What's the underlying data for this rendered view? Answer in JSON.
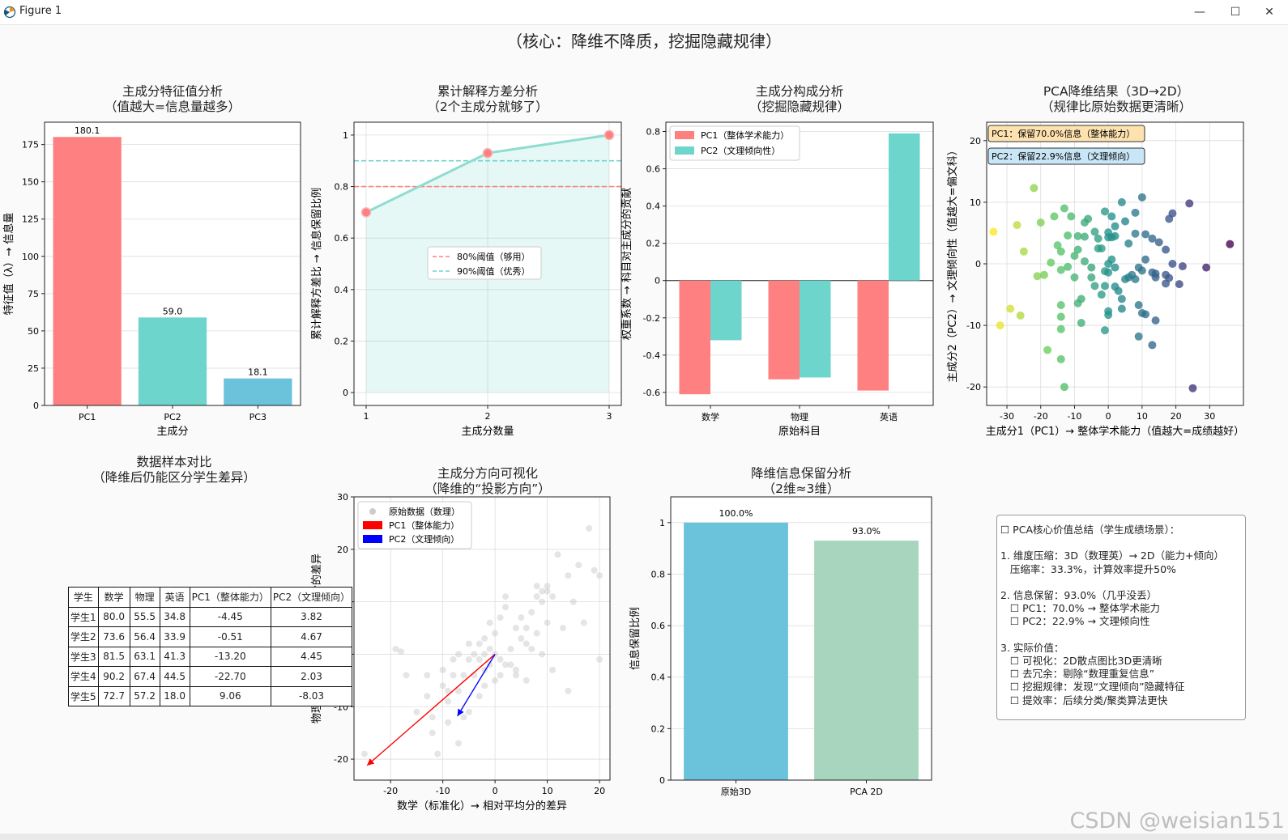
{
  "window": {
    "title": "Figure 1",
    "minimize": "—",
    "maximize": "☐",
    "close": "✕"
  },
  "figure": {
    "suptitle": "（核心：降维不降质，挖掘隐藏规律）"
  },
  "watermark": "CSDN @weisian151",
  "colors": {
    "pc1": "#ff8080",
    "pc2": "#6dd5cc",
    "pc3": "#6ac3da",
    "pca2d": "#a7d5bd",
    "orig3d": "#6ac3da",
    "grid": "#dddddd"
  },
  "chart_data": [
    {
      "id": "eigen",
      "type": "bar",
      "title": "主成分特征值分析",
      "subtitle": "（值越大=信息量越多）",
      "xlabel": "主成分",
      "ylabel": "特征值（λ）→ 信息量",
      "categories": [
        "PC1",
        "PC2",
        "PC3"
      ],
      "values": [
        180.1,
        59.0,
        18.1
      ],
      "value_labels": [
        "180.1",
        "59.0",
        "18.1"
      ],
      "ylim": [
        0,
        190
      ],
      "yticks": [
        0,
        25,
        50,
        75,
        100,
        125,
        150,
        175
      ],
      "grid": true
    },
    {
      "id": "cumvar",
      "type": "line",
      "title": "累计解释方差分析",
      "subtitle": "（2个主成分就够了）",
      "xlabel": "主成分数量",
      "ylabel": "累计解释方差比 → 信息保留比例",
      "x": [
        1,
        2,
        3
      ],
      "y": [
        0.7,
        0.93,
        1.0
      ],
      "xlim": [
        0.9,
        3.1
      ],
      "ylim": [
        -0.05,
        1.05
      ],
      "xticks": [
        1,
        2,
        3
      ],
      "yticks": [
        0.0,
        0.2,
        0.4,
        0.6,
        0.8,
        1.0
      ],
      "thresholds": [
        {
          "value": 0.8,
          "label": "80%阈值（够用）",
          "color": "#ff8080"
        },
        {
          "value": 0.9,
          "label": "90%阈值（优秀）",
          "color": "#6dd5cc"
        }
      ],
      "legend": "center-right",
      "grid": true
    },
    {
      "id": "loadings",
      "type": "bar",
      "title": "主成分构成分析",
      "subtitle": "（挖掘隐藏规律）",
      "xlabel": "原始科目",
      "ylabel": "权重系数 → 科目对主成分的贡献",
      "categories": [
        "数学",
        "物理",
        "英语"
      ],
      "series": [
        {
          "name": "PC1（整体学术能力）",
          "values": [
            -0.61,
            -0.53,
            -0.59
          ]
        },
        {
          "name": "PC2（文理倾向性）",
          "values": [
            -0.32,
            -0.52,
            0.79
          ]
        }
      ],
      "ylim": [
        -0.67,
        0.85
      ],
      "yticks": [
        -0.6,
        -0.4,
        -0.2,
        0.0,
        0.2,
        0.4,
        0.6,
        0.8
      ],
      "legend": "top-left",
      "grid": true
    },
    {
      "id": "scatter2d",
      "type": "scatter",
      "title": "PCA降维结果（3D→2D）",
      "subtitle": "（规律比原始数据更清晰）",
      "xlabel": "主成分1（PC1）→ 整体学术能力（值越大=成绩越好）",
      "ylabel": "主成分2（PC2）→ 文理倾向性（值越大=偏文科）",
      "xlim": [
        -36,
        40
      ],
      "ylim": [
        -23,
        23
      ],
      "xticks": [
        -30,
        -20,
        -10,
        0,
        10,
        20,
        30
      ],
      "yticks": [
        -20,
        -10,
        0,
        10,
        20
      ],
      "annotations": [
        "PC1：保留70.0%信息（整体能力）",
        "PC2：保留22.9%信息（文理倾向）"
      ],
      "colormap": "viridis (reversed by PC1)",
      "points": [
        [
          -34,
          5.2
        ],
        [
          -32,
          -10
        ],
        [
          -29,
          -7.3
        ],
        [
          -27,
          6.3
        ],
        [
          -26,
          -8.4
        ],
        [
          -25,
          2
        ],
        [
          -22,
          12.3
        ],
        [
          -21,
          -2
        ],
        [
          -20,
          6.7
        ],
        [
          -19,
          -1.8
        ],
        [
          -18,
          -14
        ],
        [
          -17,
          0.2
        ],
        [
          -16,
          7.7
        ],
        [
          -15,
          3
        ],
        [
          -14,
          2
        ],
        [
          -14,
          -1
        ],
        [
          -14,
          -6.7
        ],
        [
          -14,
          -8.6
        ],
        [
          -14,
          -10.6
        ],
        [
          -14,
          -15.5
        ],
        [
          -13,
          -20
        ],
        [
          -13,
          9
        ],
        [
          -12,
          4.6
        ],
        [
          -12,
          -0.5
        ],
        [
          -11,
          7.7
        ],
        [
          -10,
          -2.2
        ],
        [
          -10,
          1.3
        ],
        [
          -9,
          4.5
        ],
        [
          -9,
          2.3
        ],
        [
          -9,
          -6.4
        ],
        [
          -8,
          -9.6
        ],
        [
          -8,
          -5.7
        ],
        [
          -7,
          6.7
        ],
        [
          -7,
          4.4
        ],
        [
          -7,
          0.4
        ],
        [
          -6,
          7.3
        ],
        [
          -5,
          -0.6
        ],
        [
          -5,
          -2.2
        ],
        [
          -4,
          -3.6
        ],
        [
          -4,
          5.2
        ],
        [
          -3,
          4.1
        ],
        [
          -3,
          2.5
        ],
        [
          -2,
          2.5
        ],
        [
          -2,
          -5
        ],
        [
          -1,
          8.5
        ],
        [
          -1,
          -1.2
        ],
        [
          -1,
          -3.6
        ],
        [
          -1,
          -10.8
        ],
        [
          -1,
          17
        ],
        [
          0,
          0
        ],
        [
          0,
          5.1
        ],
        [
          0,
          4.3
        ],
        [
          0,
          -1.4
        ],
        [
          0,
          -7.7
        ],
        [
          0,
          -8.3
        ],
        [
          1,
          7.7
        ],
        [
          1,
          4.3
        ],
        [
          1,
          0.7
        ],
        [
          2,
          6.1
        ],
        [
          2,
          4.5
        ],
        [
          2,
          -0.6
        ],
        [
          2,
          -3.7
        ],
        [
          3,
          -4.4
        ],
        [
          4,
          -5.7
        ],
        [
          4,
          -7.3
        ],
        [
          4,
          10
        ],
        [
          5,
          -2.5
        ],
        [
          5,
          6.9
        ],
        [
          6,
          3.3
        ],
        [
          6,
          -2.2
        ],
        [
          7,
          -1.8
        ],
        [
          8,
          8.3
        ],
        [
          8,
          4.9
        ],
        [
          8,
          -2.5
        ],
        [
          9,
          -0.6
        ],
        [
          9,
          -6.7
        ],
        [
          9,
          -11.8
        ],
        [
          10,
          10.8
        ],
        [
          10,
          -1.1
        ],
        [
          10,
          -8
        ],
        [
          11,
          0.7
        ],
        [
          11,
          4.8
        ],
        [
          11,
          -8.2
        ],
        [
          13,
          -13.2
        ],
        [
          13,
          -1.4
        ],
        [
          13,
          4.1
        ],
        [
          14,
          -9.2
        ],
        [
          14,
          -1.6
        ],
        [
          14,
          -2.2
        ],
        [
          15,
          3.5
        ],
        [
          17,
          -1.8
        ],
        [
          17,
          2.3
        ],
        [
          17,
          -3.2
        ],
        [
          18,
          7.3
        ],
        [
          18,
          -2.3
        ],
        [
          19,
          0
        ],
        [
          19,
          8.2
        ],
        [
          21,
          -3.3
        ],
        [
          22,
          -0.4
        ],
        [
          24,
          9.8
        ],
        [
          25,
          -20.2
        ],
        [
          29,
          -0.6
        ],
        [
          36,
          3.2
        ]
      ]
    },
    {
      "id": "directions",
      "type": "scatter",
      "title": "主成分方向可视化",
      "subtitle": "（降维的“投影方向”）",
      "xlabel": "数学（标准化）→ 相对平均分的差异",
      "ylabel": "物理（标准化）→ 相对平均分的差异",
      "xlim": [
        -27,
        22
      ],
      "ylim": [
        -24,
        30
      ],
      "xticks": [
        -20,
        -10,
        0,
        10,
        20
      ],
      "yticks": [
        -20,
        -10,
        0,
        10,
        20,
        30
      ],
      "legend_labels": [
        "原始数据（数理）",
        "PC1（整体能力）",
        "PC2（文理倾向）"
      ],
      "arrows": [
        {
          "to": [
            -24.5,
            -21.2
          ],
          "color": "red"
        },
        {
          "to": [
            -7.2,
            -11.8
          ],
          "color": "blue"
        }
      ],
      "points": [
        [
          -25,
          -19
        ],
        [
          -19,
          1
        ],
        [
          -18,
          0.5
        ],
        [
          -17,
          -4
        ],
        [
          -15,
          -11
        ],
        [
          -13,
          -4
        ],
        [
          -13,
          -8
        ],
        [
          -12,
          -12
        ],
        [
          -12,
          -15
        ],
        [
          -11,
          -19
        ],
        [
          -10,
          -3
        ],
        [
          -10,
          -6
        ],
        [
          -9,
          -7
        ],
        [
          -9,
          -9
        ],
        [
          -9,
          -13
        ],
        [
          -8,
          -4
        ],
        [
          -8,
          -1
        ],
        [
          -7,
          -17
        ],
        [
          -7,
          -7
        ],
        [
          -7,
          0
        ],
        [
          -6,
          -4
        ],
        [
          -5,
          -11
        ],
        [
          -5,
          -1
        ],
        [
          -5,
          2
        ],
        [
          -4,
          -4
        ],
        [
          -4,
          0
        ],
        [
          -3,
          -1
        ],
        [
          -3,
          -8
        ],
        [
          -3,
          2
        ],
        [
          -2,
          0
        ],
        [
          -2,
          -3
        ],
        [
          -2,
          3
        ],
        [
          -2,
          -6
        ],
        [
          -1,
          -2
        ],
        [
          -1,
          6
        ],
        [
          -1,
          1
        ],
        [
          0,
          0
        ],
        [
          0,
          4
        ],
        [
          0,
          -5
        ],
        [
          1,
          7
        ],
        [
          1,
          -1
        ],
        [
          1,
          -4
        ],
        [
          2,
          9
        ],
        [
          2,
          -2
        ],
        [
          2,
          11
        ],
        [
          3,
          -2
        ],
        [
          3,
          1
        ],
        [
          4,
          -4
        ],
        [
          4,
          5
        ],
        [
          4,
          -3
        ],
        [
          5,
          3
        ],
        [
          5,
          7
        ],
        [
          6,
          2
        ],
        [
          6,
          5
        ],
        [
          7,
          1
        ],
        [
          7,
          8
        ],
        [
          8,
          4
        ],
        [
          8,
          11
        ],
        [
          8,
          13
        ],
        [
          9,
          12
        ],
        [
          9,
          10
        ],
        [
          9,
          0
        ],
        [
          10,
          6
        ],
        [
          10,
          12
        ],
        [
          10,
          13
        ],
        [
          11,
          11
        ],
        [
          12,
          19
        ],
        [
          13,
          5
        ],
        [
          14,
          15
        ],
        [
          15,
          10
        ],
        [
          16,
          17
        ],
        [
          17,
          6
        ],
        [
          18,
          24
        ],
        [
          19,
          16
        ],
        [
          20,
          15
        ],
        [
          20,
          -1
        ],
        [
          14,
          -7
        ],
        [
          6,
          -5
        ],
        [
          -6,
          -12
        ],
        [
          11,
          -3
        ]
      ]
    },
    {
      "id": "retention",
      "type": "bar",
      "title": "降维信息保留分析",
      "subtitle": "（2维≈3维）",
      "xlabel": "",
      "ylabel": "信息保留比例",
      "categories": [
        "原始3D",
        "PCA 2D"
      ],
      "values": [
        1.0,
        0.93
      ],
      "value_labels": [
        "100.0%",
        "93.0%"
      ],
      "ylim": [
        0,
        1.1
      ],
      "yticks": [
        0.0,
        0.2,
        0.4,
        0.6,
        0.8,
        1.0
      ],
      "grid": true
    }
  ],
  "table": {
    "title": "数据样本对比",
    "subtitle": "（降维后仍能区分学生差异）",
    "header": [
      "学生",
      "数学",
      "物理",
      "英语",
      "PC1（整体能力）",
      "PC2（文理倾向）"
    ],
    "rows": [
      [
        "学生1",
        "80.0",
        "55.5",
        "34.8",
        "-4.45",
        "3.82"
      ],
      [
        "学生2",
        "73.6",
        "56.4",
        "33.9",
        "-0.51",
        "4.67"
      ],
      [
        "学生3",
        "81.5",
        "63.1",
        "41.3",
        "-13.20",
        "4.45"
      ],
      [
        "学生4",
        "90.2",
        "67.4",
        "44.5",
        "-22.70",
        "2.03"
      ],
      [
        "学生5",
        "72.7",
        "57.2",
        "18.0",
        "9.06",
        "-8.03"
      ]
    ]
  },
  "summary": {
    "lines": [
      "☐ PCA核心价值总结（学生成绩场景）：",
      "",
      "1. 维度压缩：3D（数理英）→ 2D（能力+倾向）",
      "   压缩率：33.3%，计算效率提升50%",
      "",
      "2. 信息保留：93.0%（几乎没丢）",
      "   ☐ PC1：70.0% → 整体学术能力",
      "   ☐ PC2：22.9% → 文理倾向性",
      "",
      "3. 实际价值：",
      "   ☐ 可视化：2D散点图比3D更清晰",
      "   ☐ 去冗余：剔除“数理重复信息”",
      "   ☐ 挖掘规律：发现“文理倾向”隐藏特征",
      "   ☐ 提效率：后续分类/聚类算法更快"
    ]
  }
}
